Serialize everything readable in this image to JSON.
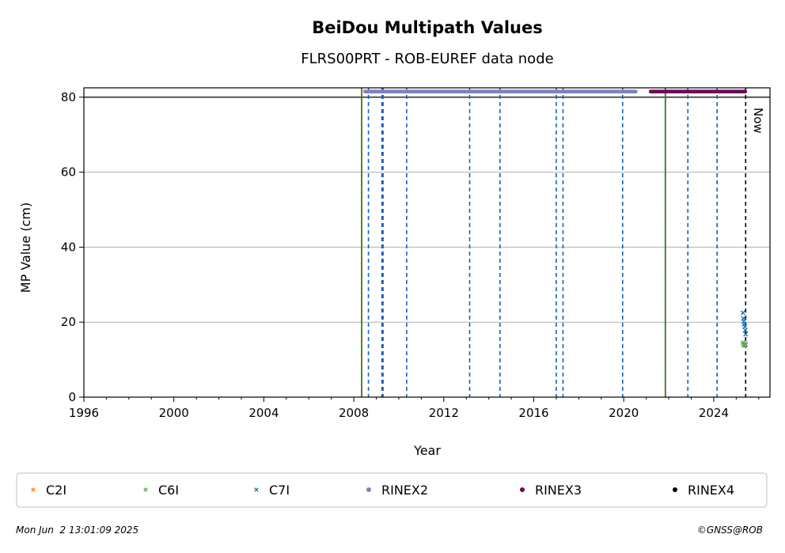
{
  "chart_data": {
    "type": "scatter",
    "title": "BeiDou Multipath Values",
    "subtitle": "FLRS00PRT - ROB-EUREF data node",
    "xlabel": "Year",
    "ylabel": "MP Value (cm)",
    "xlim": [
      1996,
      2026.5
    ],
    "ylim": [
      0,
      82.5
    ],
    "xticks": [
      1996,
      2000,
      2004,
      2008,
      2012,
      2016,
      2020,
      2024
    ],
    "xtick_labels": [
      "1996",
      "2000",
      "2004",
      "2008",
      "2012",
      "2016",
      "2020",
      "2024"
    ],
    "yticks": [
      0,
      20,
      40,
      60,
      80
    ],
    "ytick_labels": [
      "0",
      "20",
      "40",
      "60",
      "80"
    ],
    "grid": "horizontal",
    "reference_line_y": 80,
    "receiver_change_lines": [
      2008.35,
      2021.85
    ],
    "equipment_change_lines": [
      2008.65,
      2009.25,
      2009.3,
      2010.35,
      2013.15,
      2014.5,
      2017.0,
      2017.3,
      2019.95,
      2022.85,
      2024.15
    ],
    "now_line": {
      "x": 2025.42,
      "label": "Now"
    },
    "series": [
      {
        "name": "C2I",
        "marker": "x",
        "color": "#ff7f0e",
        "points": []
      },
      {
        "name": "C6I",
        "marker": "x",
        "color": "#5fa55a",
        "points": [
          [
            2025.3,
            14.5
          ],
          [
            2025.33,
            14.0
          ],
          [
            2025.36,
            13.8
          ],
          [
            2025.39,
            14.3
          ],
          [
            2025.42,
            13.9
          ]
        ]
      },
      {
        "name": "C7I",
        "marker": "x",
        "color": "#1f77b4",
        "points": [
          [
            2025.3,
            22.5
          ],
          [
            2025.32,
            21.0
          ],
          [
            2025.34,
            20.2
          ],
          [
            2025.36,
            19.5
          ],
          [
            2025.38,
            18.8
          ],
          [
            2025.4,
            17.9
          ],
          [
            2025.42,
            16.8
          ]
        ]
      },
      {
        "name": "RINEX2",
        "marker": "dot",
        "color": "#8080c0",
        "range": [
          2008.5,
          2020.55
        ],
        "y": 81.5
      },
      {
        "name": "RINEX3",
        "marker": "dot",
        "color": "#6b0a5a",
        "range": [
          2021.2,
          2025.42
        ],
        "y": 81.5
      },
      {
        "name": "RINEX4",
        "marker": "dot",
        "color": "#000000",
        "points": []
      }
    ],
    "legend_position": "bottom"
  },
  "footer": {
    "timestamp": "Mon Jun  2 13:01:09 2025",
    "credit": "©GNSS@ROB"
  }
}
